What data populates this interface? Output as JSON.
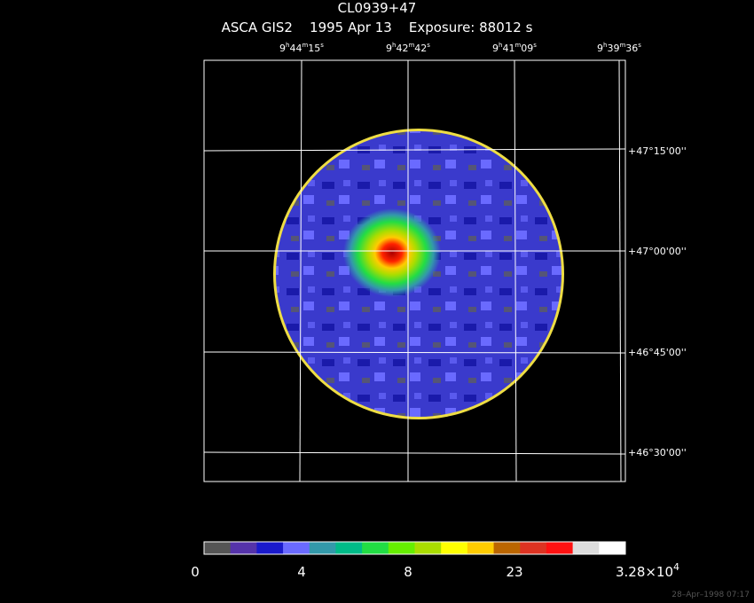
{
  "header": {
    "title": "CL0939+47",
    "subtitle": "ASCA GIS2    1995 Apr 13    Exposure: 88012 s"
  },
  "ra_labels": [
    [
      "9",
      "h",
      "44",
      "m",
      "15",
      "s"
    ],
    [
      "9",
      "h",
      "42",
      "m",
      "42",
      "s"
    ],
    [
      "9",
      "h",
      "41",
      "m",
      "09",
      "s"
    ],
    [
      "9",
      "h",
      "39",
      "m",
      "36",
      "s"
    ]
  ],
  "dec_labels": [
    "+47°15'00''",
    "+47°00'00''",
    "+46°45'00''",
    "+46°30'00''"
  ],
  "colorbar": {
    "colors": [
      "#555555",
      "#5533aa",
      "#1a1acc",
      "#6a6aff",
      "#3399aa",
      "#00bb88",
      "#22dd44",
      "#66ee00",
      "#aadd00",
      "#ffff00",
      "#ffcc00",
      "#bb6600",
      "#dd3322",
      "#ff1111",
      "#dddddd",
      "#ffffff"
    ],
    "labels": [
      [
        "0"
      ],
      [
        "4"
      ],
      [
        "8"
      ],
      [
        "23"
      ],
      [
        "3.28×10",
        "4"
      ]
    ]
  },
  "footer": {
    "timestamp": "28–Apr–1998 07:17"
  }
}
